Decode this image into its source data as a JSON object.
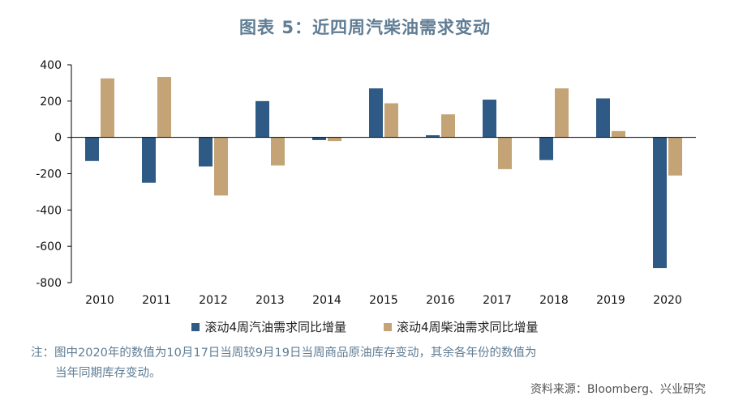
{
  "title": "图表 5：近四周汽柴油需求变动",
  "chart_data": {
    "type": "bar",
    "categories": [
      "2010",
      "2011",
      "2012",
      "2013",
      "2014",
      "2015",
      "2016",
      "2017",
      "2018",
      "2019",
      "2020"
    ],
    "series": [
      {
        "name": "滚动4周汽油需求同比增量",
        "color": "#2e5a85",
        "values": [
          -130,
          -250,
          -160,
          200,
          -15,
          270,
          12,
          208,
          -125,
          215,
          -720
        ]
      },
      {
        "name": "滚动4周柴油需求同比增量",
        "color": "#c4a477",
        "values": [
          325,
          333,
          -320,
          -155,
          -20,
          188,
          127,
          -175,
          270,
          35,
          -210
        ]
      }
    ],
    "ylim": [
      -800,
      400
    ],
    "yticks": [
      "400",
      "200",
      "0",
      "-200",
      "-400",
      "-600",
      "-800"
    ],
    "ytick_values": [
      400,
      200,
      0,
      -200,
      -400,
      -600,
      -800
    ]
  },
  "note": {
    "line1": "注：图中2020年的数值为10月17日当周较9月19日当周商品原油库存变动，其余各年份的数值为",
    "line2": "当年同期库存变动。"
  },
  "source": "资料来源：Bloomberg、兴业研究"
}
